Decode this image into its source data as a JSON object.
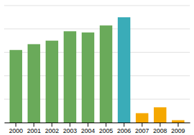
{
  "chart_data": {
    "type": "bar",
    "categories": [
      "2000",
      "2001",
      "2002",
      "2003",
      "2004",
      "2005",
      "2006",
      "2007",
      "2008",
      "2009"
    ],
    "values": [
      62,
      67,
      70,
      78,
      77,
      83,
      90,
      8,
      13,
      2
    ],
    "colors": [
      "#6aaa5a",
      "#6aaa5a",
      "#6aaa5a",
      "#6aaa5a",
      "#6aaa5a",
      "#6aaa5a",
      "#3aacb8",
      "#f5a800",
      "#f5a800",
      "#f5a800"
    ],
    "ylim": [
      0,
      100
    ],
    "yticks": [
      20,
      40,
      60,
      80,
      100
    ],
    "grid": true,
    "tick_labels": "x"
  }
}
